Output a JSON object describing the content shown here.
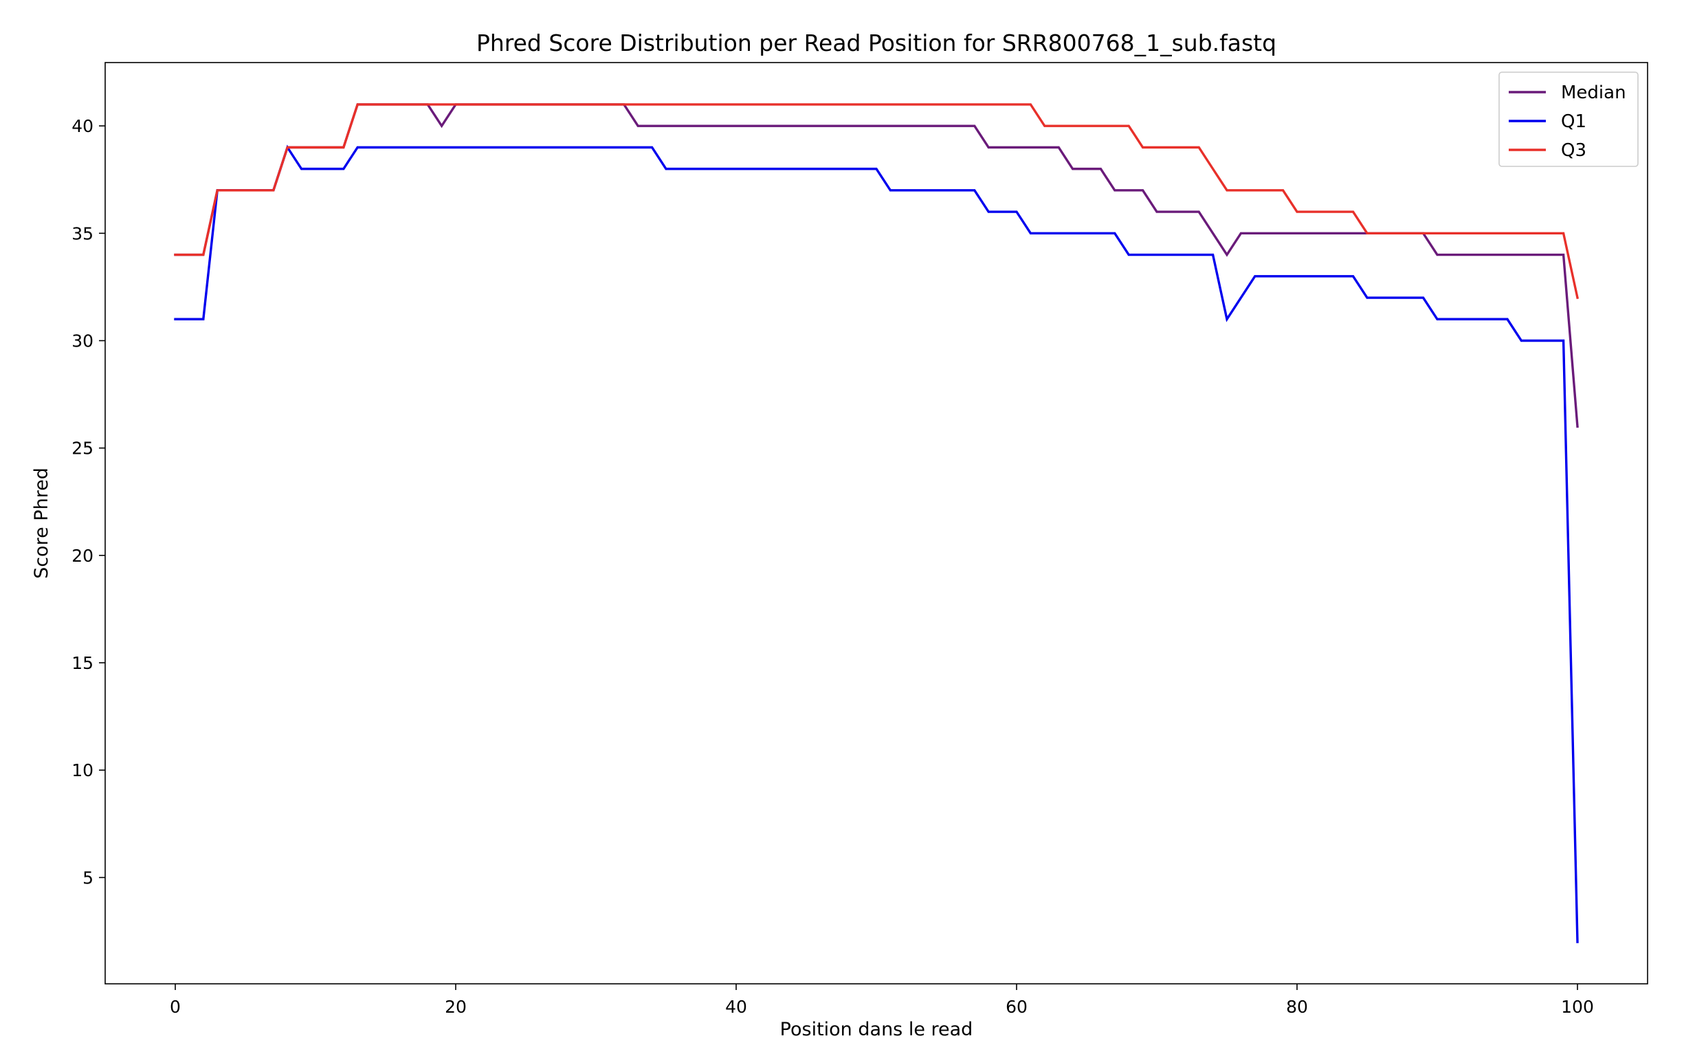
{
  "chart_data": {
    "type": "line",
    "title": "Phred Score Distribution per Read Position for SRR800768_1_sub.fastq",
    "xlabel": "Position dans le read",
    "ylabel": "Score Phred",
    "xlim": [
      -5,
      105
    ],
    "ylim": [
      0.05,
      42.95
    ],
    "x_ticks": [
      0,
      20,
      40,
      60,
      80,
      100
    ],
    "y_ticks": [
      5,
      10,
      15,
      20,
      25,
      30,
      35,
      40
    ],
    "grid": false,
    "legend_position": "top-right",
    "x": [
      0,
      1,
      2,
      3,
      4,
      5,
      6,
      7,
      8,
      9,
      10,
      11,
      12,
      13,
      14,
      15,
      16,
      17,
      18,
      19,
      20,
      21,
      22,
      23,
      24,
      25,
      26,
      27,
      28,
      29,
      30,
      31,
      32,
      33,
      34,
      35,
      36,
      37,
      38,
      39,
      40,
      41,
      42,
      43,
      44,
      45,
      46,
      47,
      48,
      49,
      50,
      51,
      52,
      53,
      54,
      55,
      56,
      57,
      58,
      59,
      60,
      61,
      62,
      63,
      64,
      65,
      66,
      67,
      68,
      69,
      70,
      71,
      72,
      73,
      74,
      75,
      76,
      77,
      78,
      79,
      80,
      81,
      82,
      83,
      84,
      85,
      86,
      87,
      88,
      89,
      90,
      91,
      92,
      93,
      94,
      95,
      96,
      97,
      98,
      99,
      100
    ],
    "series": [
      {
        "name": "Median",
        "color": "#6a1b7a",
        "values": [
          34,
          34,
          34,
          37,
          37,
          37,
          37,
          37,
          39,
          39,
          39,
          39,
          39,
          41,
          41,
          41,
          41,
          41,
          41,
          40,
          41,
          41,
          41,
          41,
          41,
          41,
          41,
          41,
          41,
          41,
          41,
          41,
          41,
          40,
          40,
          40,
          40,
          40,
          40,
          40,
          40,
          40,
          40,
          40,
          40,
          40,
          40,
          40,
          40,
          40,
          40,
          40,
          40,
          40,
          40,
          40,
          40,
          40,
          39,
          39,
          39,
          39,
          39,
          39,
          38,
          38,
          38,
          37,
          37,
          37,
          36,
          36,
          36,
          36,
          35,
          34,
          35,
          35,
          35,
          35,
          35,
          35,
          35,
          35,
          35,
          35,
          35,
          35,
          35,
          35,
          34,
          34,
          34,
          34,
          34,
          34,
          34,
          34,
          34,
          34,
          26
        ]
      },
      {
        "name": "Q1",
        "color": "#0000ee",
        "values": [
          31,
          31,
          31,
          37,
          37,
          37,
          37,
          37,
          39,
          38,
          38,
          38,
          38,
          39,
          39,
          39,
          39,
          39,
          39,
          39,
          39,
          39,
          39,
          39,
          39,
          39,
          39,
          39,
          39,
          39,
          39,
          39,
          39,
          39,
          39,
          38,
          38,
          38,
          38,
          38,
          38,
          38,
          38,
          38,
          38,
          38,
          38,
          38,
          38,
          38,
          38,
          37,
          37,
          37,
          37,
          37,
          37,
          37,
          36,
          36,
          36,
          35,
          35,
          35,
          35,
          35,
          35,
          35,
          34,
          34,
          34,
          34,
          34,
          34,
          34,
          31,
          32,
          33,
          33,
          33,
          33,
          33,
          33,
          33,
          33,
          32,
          32,
          32,
          32,
          32,
          31,
          31,
          31,
          31,
          31,
          31,
          30,
          30,
          30,
          30,
          2
        ]
      },
      {
        "name": "Q3",
        "color": "#e8302a",
        "values": [
          34,
          34,
          34,
          37,
          37,
          37,
          37,
          37,
          39,
          39,
          39,
          39,
          39,
          41,
          41,
          41,
          41,
          41,
          41,
          41,
          41,
          41,
          41,
          41,
          41,
          41,
          41,
          41,
          41,
          41,
          41,
          41,
          41,
          41,
          41,
          41,
          41,
          41,
          41,
          41,
          41,
          41,
          41,
          41,
          41,
          41,
          41,
          41,
          41,
          41,
          41,
          41,
          41,
          41,
          41,
          41,
          41,
          41,
          41,
          41,
          41,
          41,
          40,
          40,
          40,
          40,
          40,
          40,
          40,
          39,
          39,
          39,
          39,
          39,
          38,
          37,
          37,
          37,
          37,
          37,
          36,
          36,
          36,
          36,
          36,
          35,
          35,
          35,
          35,
          35,
          35,
          35,
          35,
          35,
          35,
          35,
          35,
          35,
          35,
          35,
          32
        ]
      }
    ]
  }
}
